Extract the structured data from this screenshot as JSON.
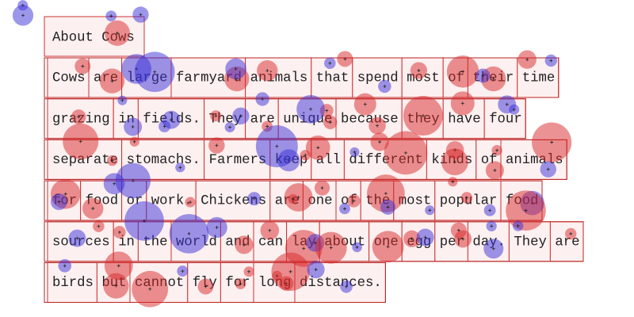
{
  "title": "About Cows",
  "lines": [
    [
      "Cows",
      "are",
      "large",
      "farmyard",
      "animals",
      "that",
      "spend",
      "most",
      "of",
      "their",
      "time"
    ],
    [
      "grazing",
      "in",
      "fields.",
      "They",
      "are",
      "unique",
      "because",
      "they",
      "have",
      "four"
    ],
    [
      "separate",
      "stomachs.",
      "Farmers",
      "keep",
      "all",
      "different",
      "kinds",
      "of",
      "animals"
    ],
    [
      "for",
      "food",
      "or",
      "work.",
      "Chickens",
      "are",
      "one",
      "of",
      "the",
      "most",
      "popular",
      "food"
    ],
    [
      "sources",
      "in",
      "the",
      "world",
      "and",
      "can",
      "lay",
      "about",
      "one",
      "egg",
      "per",
      "day.",
      "They",
      "are"
    ],
    [
      "birds",
      "but",
      "cannot",
      "fly",
      "for",
      "long",
      "distances."
    ]
  ]
}
